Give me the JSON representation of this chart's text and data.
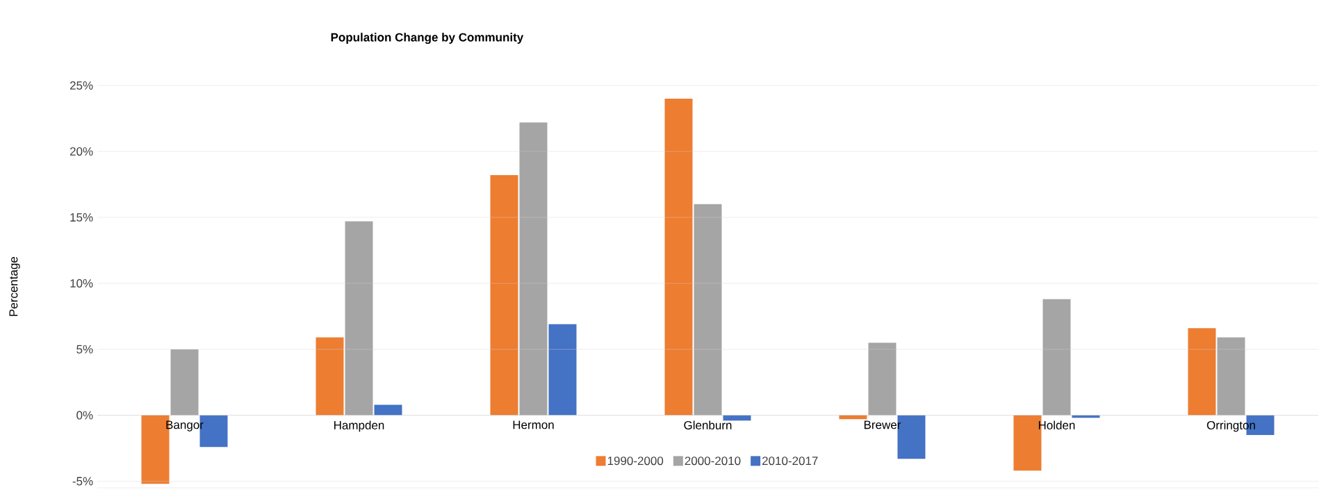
{
  "chart_data": {
    "type": "bar",
    "title": "Population Change by Community",
    "ylabel": "Percentage",
    "categories": [
      "Bangor",
      "Hampden",
      "Hermon",
      "Glenburn",
      "Brewer",
      "Holden",
      "Orrington"
    ],
    "series": [
      {
        "name": "1990-2000",
        "color": "#ed7d31",
        "values": [
          -5.2,
          5.9,
          18.2,
          24.0,
          -0.3,
          -4.2,
          6.6
        ]
      },
      {
        "name": "2000-2010",
        "color": "#a5a5a5",
        "values": [
          5.0,
          14.7,
          22.2,
          16.0,
          5.5,
          8.8,
          5.9
        ]
      },
      {
        "name": "2010-2017",
        "color": "#4472c4",
        "values": [
          -2.4,
          0.8,
          6.9,
          -0.4,
          -3.3,
          -0.2,
          -1.5
        ]
      }
    ],
    "ylim": [
      -5.5,
      25
    ],
    "yticks": [
      {
        "value": -5,
        "label": "-5%"
      },
      {
        "value": 0,
        "label": "0%"
      },
      {
        "value": 5,
        "label": "5%"
      },
      {
        "value": 10,
        "label": "10%"
      },
      {
        "value": 15,
        "label": "15%"
      },
      {
        "value": 20,
        "label": "20%"
      },
      {
        "value": 25,
        "label": "25%"
      }
    ],
    "grid": "y",
    "legend": "bottom"
  }
}
